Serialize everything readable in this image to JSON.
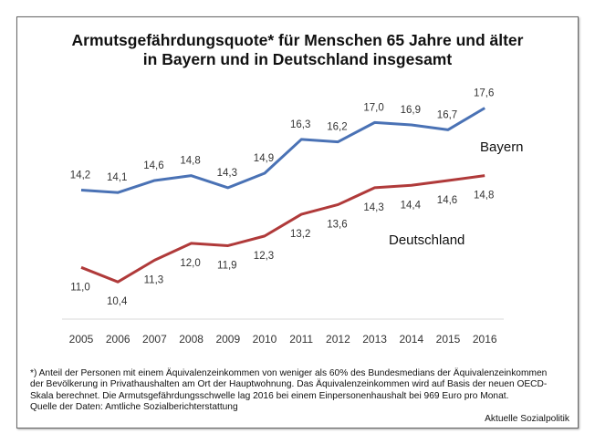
{
  "chart_data": {
    "type": "line",
    "title": "Armutsgefährdungsquote* für Menschen 65 Jahre und älter\nin Bayern und in Deutschland insgesamt",
    "title_lines": [
      "Armutsgefährdungsquote* für Menschen 65 Jahre und älter",
      "in Bayern und in Deutschland insgesamt"
    ],
    "xlabel": "",
    "ylabel": "",
    "x": [
      "2005",
      "2006",
      "2007",
      "2008",
      "2009",
      "2010",
      "2011",
      "2012",
      "2013",
      "2014",
      "2015",
      "2016"
    ],
    "series": [
      {
        "name": "Bayern",
        "color": "#4a72b5",
        "values": [
          14.2,
          14.1,
          14.6,
          14.8,
          14.3,
          14.9,
          16.3,
          16.2,
          17.0,
          16.9,
          16.7,
          17.6
        ],
        "labels": [
          "14,2",
          "14,1",
          "14,6",
          "14,8",
          "14,3",
          "14,9",
          "16,3",
          "16,2",
          "17,0",
          "16,9",
          "16,7",
          "17,6"
        ],
        "label_position": "above"
      },
      {
        "name": "Deutschland",
        "color": "#b03a3a",
        "values": [
          11.0,
          10.4,
          11.3,
          12.0,
          11.9,
          12.3,
          13.2,
          13.6,
          14.3,
          14.4,
          14.6,
          14.8
        ],
        "labels": [
          "11,0",
          "10,4",
          "11,3",
          "12,0",
          "11,9",
          "12,3",
          "13,2",
          "13,6",
          "14,3",
          "14,4",
          "14,6",
          "14,8"
        ],
        "label_position": "below"
      }
    ],
    "ylim": [
      9.2,
      18.6
    ],
    "grid": false,
    "y_axis_visible": false,
    "legend": "inline series names right of lines"
  },
  "footnote": {
    "lines": [
      "*) Anteil der Personen mit einem Äquivalenzeinkommen von weniger als 60% des Bundesmedians der Äquivalenzeinkommen",
      "der Bevölkerung in Privathaushalten am Ort der Hauptwohnung. Das Äquivalenzeinkommen wird auf Basis der neuen OECD-",
      "Skala berechnet. Die Armutsgefährdungsschwelle lag 2016 bei einem Einpersonenhaushalt bei 969 Euro pro Monat.",
      "Quelle der Daten: Amtliche Sozialberichterstattung"
    ]
  },
  "credit": "Aktuelle Sozialpolitik"
}
